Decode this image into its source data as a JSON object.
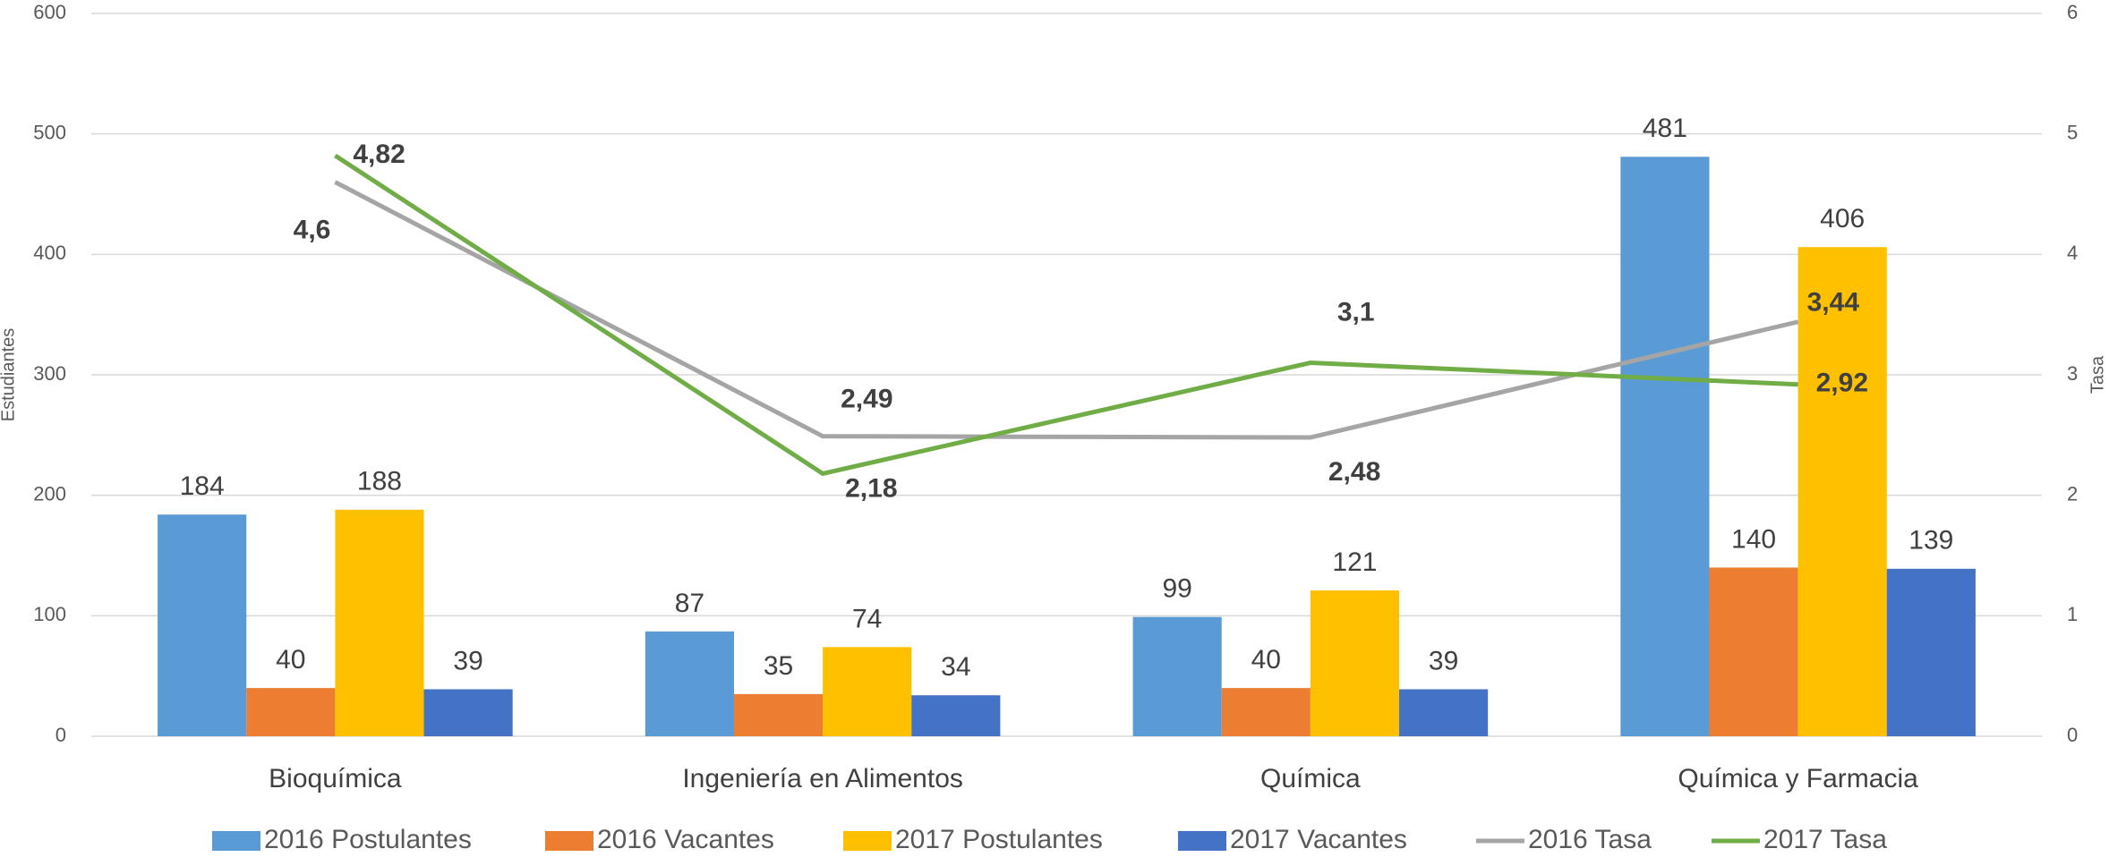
{
  "chart_data": {
    "type": "bar_line",
    "categories": [
      "Bioquímica",
      "Ingeniería en Alimentos",
      "Química",
      "Química y Farmacia"
    ],
    "ylabel": "Estudiantes",
    "y2label": "Tasa",
    "ylim": [
      0,
      600
    ],
    "yticks": [
      0,
      100,
      200,
      300,
      400,
      500,
      600
    ],
    "y2lim": [
      0,
      6
    ],
    "y2ticks": [
      0,
      1,
      2,
      3,
      4,
      5,
      6
    ],
    "grid": true,
    "legend": "bottom",
    "series": [
      {
        "name": "2016 Postulantes",
        "type": "bar",
        "color": "#5b9bd5",
        "values": [
          184,
          87,
          99,
          481
        ]
      },
      {
        "name": "2016 Vacantes",
        "type": "bar",
        "color": "#ed7d31",
        "values": [
          40,
          35,
          40,
          140
        ]
      },
      {
        "name": "2017 Postulantes",
        "type": "bar",
        "color": "#ffc000",
        "values": [
          188,
          74,
          121,
          406
        ]
      },
      {
        "name": "2017 Vacantes",
        "type": "bar",
        "color": "#4472c4",
        "values": [
          39,
          34,
          39,
          139
        ]
      },
      {
        "name": "2016 Tasa",
        "type": "line",
        "axis": "y2",
        "color": "#a5a5a5",
        "values": [
          4.6,
          2.49,
          2.48,
          3.44
        ],
        "value_labels": [
          "4,6",
          "2,49",
          "2,48",
          "3,44"
        ]
      },
      {
        "name": "2017 Tasa",
        "type": "line",
        "axis": "y2",
        "color": "#70ad47",
        "values": [
          4.82,
          2.18,
          3.1,
          2.92
        ],
        "value_labels": [
          "4,82",
          "2,18",
          "3,1",
          "2,92"
        ]
      }
    ]
  }
}
